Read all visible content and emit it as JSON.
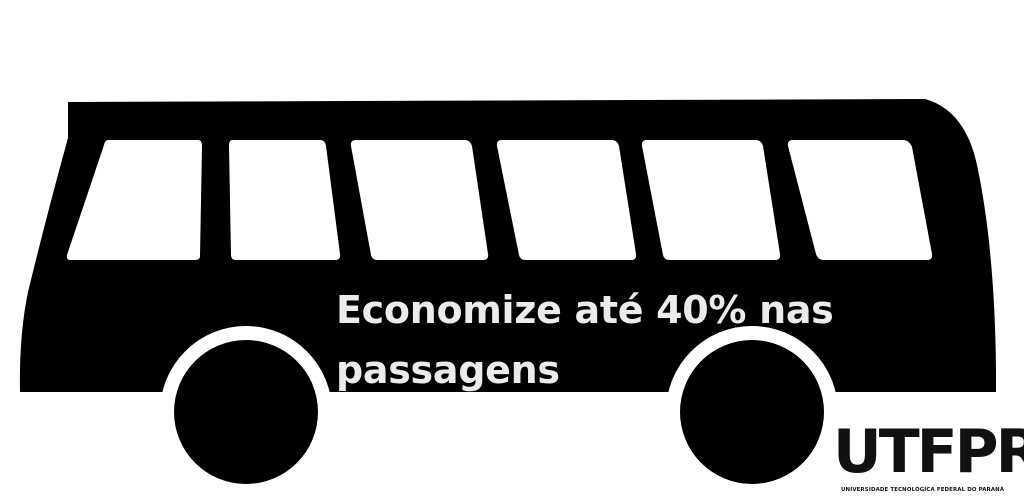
{
  "headline": {
    "line1": "Economize até 40% nas",
    "line2": "passagens"
  },
  "logo": {
    "letters": [
      "U",
      "T",
      "F",
      "PR"
    ],
    "subtitle": "UNIVERSIDADE TECNOLÓGICA FEDERAL DO PARANÁ"
  },
  "colors": {
    "background": "#ffffff",
    "bus": "#000000",
    "text": "#ebebeb",
    "logo": "#111111"
  },
  "icons": {
    "main": "bus-icon"
  }
}
